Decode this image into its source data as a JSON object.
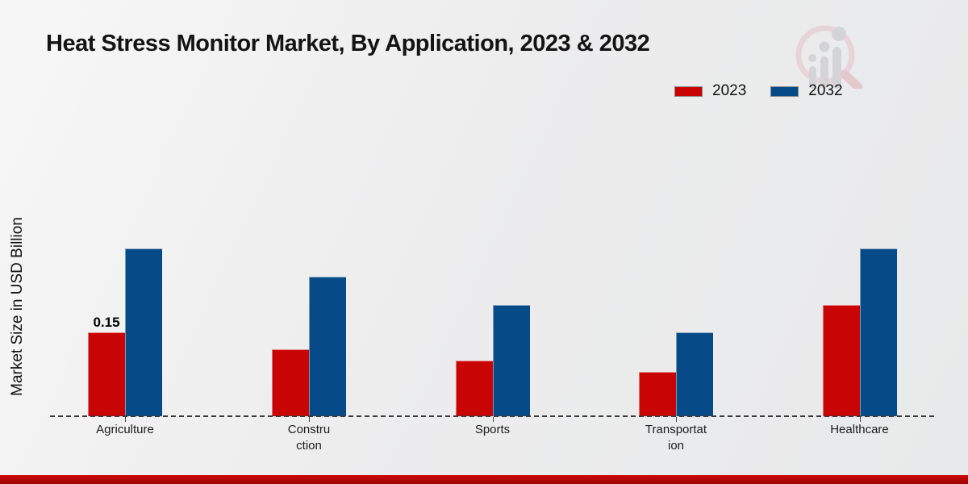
{
  "page": {
    "title": "Heat Stress Monitor Market, By Application, 2023 & 2032"
  },
  "ylabel": "Market Size in USD Billion",
  "colors": {
    "series_2023": "#c80404",
    "series_2032": "#064a87",
    "accent_strip": "#b30404",
    "baseline": "#3a3a3a",
    "background": "#ededee"
  },
  "logo": {
    "name": "magnifier-bar-chart-logo"
  },
  "chart_data": {
    "type": "bar",
    "title": "Heat Stress Monitor Market, By Application, 2023 & 2032",
    "xlabel": "",
    "ylabel": "Market Size in USD Billion",
    "categories": [
      "Agriculture",
      "Construction",
      "Sports",
      "Transportation",
      "Healthcare"
    ],
    "categories_display": [
      [
        "Agriculture"
      ],
      [
        "Constru",
        "ction"
      ],
      [
        "Sports"
      ],
      [
        "Transportat",
        "ion"
      ],
      [
        "Healthcare"
      ]
    ],
    "series": [
      {
        "name": "2023",
        "color": "#c80404",
        "values": [
          0.15,
          0.12,
          0.1,
          0.08,
          0.2
        ]
      },
      {
        "name": "2032",
        "color": "#064a87",
        "values": [
          0.3,
          0.25,
          0.2,
          0.15,
          0.3
        ]
      }
    ],
    "annotations": [
      {
        "text": "0.15",
        "category_index": 0,
        "series_index": 0
      }
    ],
    "ylim": [
      0,
      0.32
    ],
    "grid": false,
    "baseline_dashed": true,
    "legend_position": "top-right"
  }
}
